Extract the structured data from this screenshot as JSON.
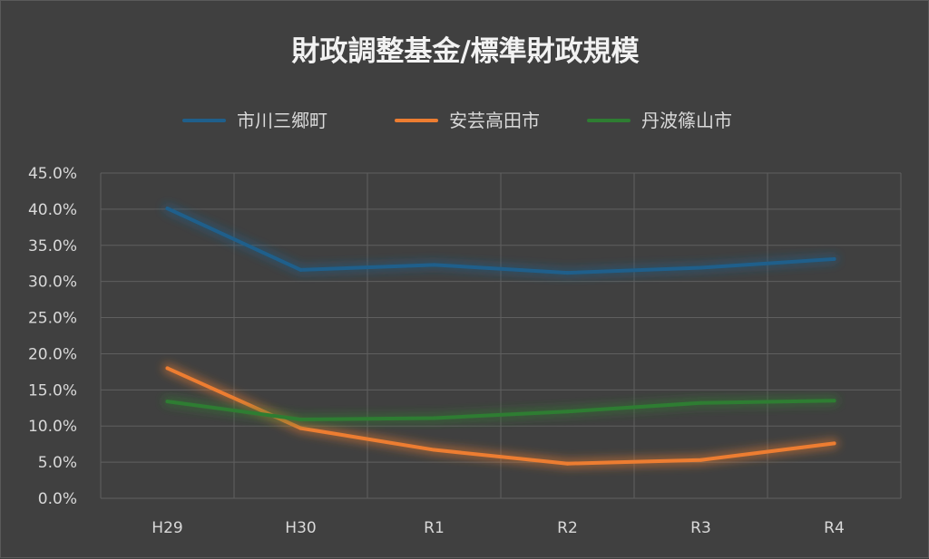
{
  "chart_data": {
    "type": "line",
    "title": "財政調整基金/標準財政規模",
    "categories": [
      "H29",
      "H30",
      "R1",
      "R2",
      "R3",
      "R4"
    ],
    "series": [
      {
        "name": "市川三郷町",
        "color": "#1f5f8b",
        "values": [
          40.1,
          31.6,
          32.3,
          31.2,
          31.9,
          33.1
        ]
      },
      {
        "name": "安芸高田市",
        "color": "#ed7d31",
        "values": [
          18.0,
          9.7,
          6.7,
          4.8,
          5.3,
          7.6
        ]
      },
      {
        "name": "丹波篠山市",
        "color": "#2e7d32",
        "values": [
          13.4,
          10.9,
          11.1,
          12.0,
          13.2,
          13.5
        ]
      }
    ],
    "y_ticks": [
      "0.0%",
      "5.0%",
      "10.0%",
      "15.0%",
      "20.0%",
      "25.0%",
      "30.0%",
      "35.0%",
      "40.0%",
      "45.0%"
    ],
    "ylim": [
      0,
      45
    ],
    "grid": true,
    "legend_position": "top"
  }
}
